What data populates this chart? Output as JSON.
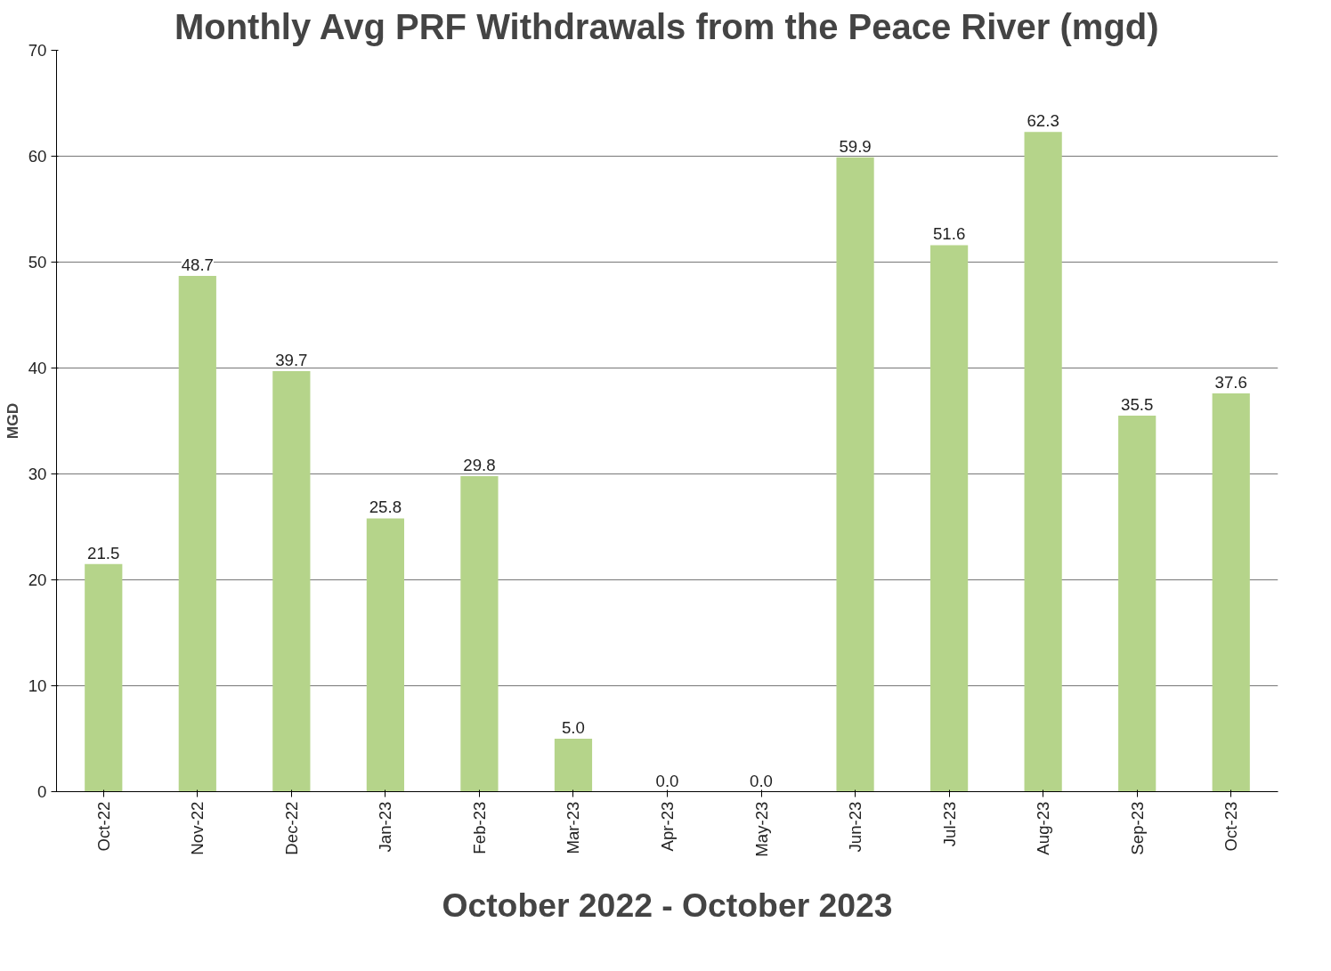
{
  "chart_data": {
    "type": "bar",
    "title": "Monthly Avg PRF Withdrawals from the Peace River (mgd)",
    "xlabel": "October 2022 - October 2023",
    "ylabel": "MGD",
    "categories": [
      "Oct-22",
      "Nov-22",
      "Dec-22",
      "Jan-23",
      "Feb-23",
      "Mar-23",
      "Apr-23",
      "May-23",
      "Jun-23",
      "Jul-23",
      "Aug-23",
      "Sep-23",
      "Oct-23"
    ],
    "values": [
      21.5,
      48.7,
      39.7,
      25.8,
      29.8,
      5.0,
      0.0,
      0.0,
      59.9,
      51.6,
      62.3,
      35.5,
      37.6
    ],
    "value_labels": [
      "21.5",
      "48.7",
      "39.7",
      "25.8",
      "29.8",
      "5.0",
      "0.0",
      "0.0",
      "59.9",
      "51.6",
      "62.3",
      "35.5",
      "37.6"
    ],
    "color": "#b5d48a",
    "ylim": [
      0,
      70
    ],
    "yticks": [
      0,
      10,
      20,
      30,
      40,
      50,
      60,
      70
    ],
    "grid": "y"
  }
}
